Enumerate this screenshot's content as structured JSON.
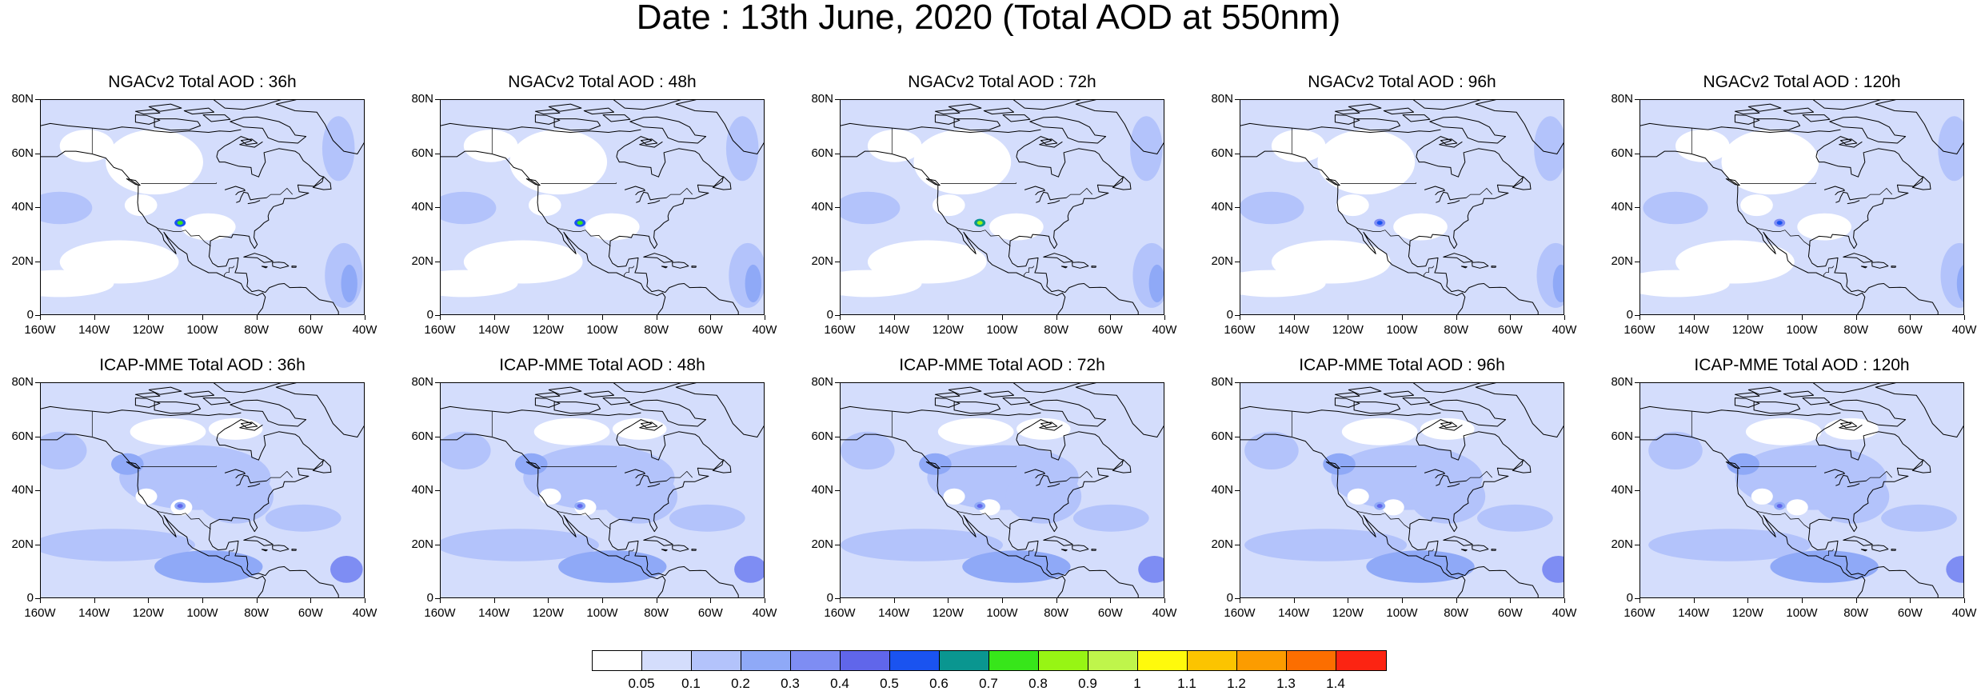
{
  "title": "Date : 13th June, 2020 (Total AOD at 550nm)",
  "rows": [
    {
      "model": "NGACv2",
      "panels": [
        {
          "label": "NGACv2 Total AOD : 36h",
          "lead": "36h",
          "dust_plume_peak": 0.7
        },
        {
          "label": "NGACv2 Total AOD : 48h",
          "lead": "48h",
          "dust_plume_peak": 0.7
        },
        {
          "label": "NGACv2 Total AOD : 72h",
          "lead": "72h",
          "dust_plume_peak": 0.8
        },
        {
          "label": "NGACv2 Total AOD : 96h",
          "lead": "96h",
          "dust_plume_peak": 0.5
        },
        {
          "label": "NGACv2 Total AOD : 120h",
          "lead": "120h",
          "dust_plume_peak": 0.5
        }
      ]
    },
    {
      "model": "ICAP-MME",
      "panels": [
        {
          "label": "ICAP-MME Total AOD : 36h",
          "lead": "36h",
          "dust_plume_peak": 0.4
        },
        {
          "label": "ICAP-MME Total AOD : 48h",
          "lead": "48h",
          "dust_plume_peak": 0.4
        },
        {
          "label": "ICAP-MME Total AOD : 72h",
          "lead": "72h",
          "dust_plume_peak": 0.4
        },
        {
          "label": "ICAP-MME Total AOD : 96h",
          "lead": "96h",
          "dust_plume_peak": 0.4
        },
        {
          "label": "ICAP-MME Total AOD : 120h",
          "lead": "120h",
          "dust_plume_peak": 0.4
        }
      ]
    }
  ],
  "axes": {
    "lat_ticks": [
      "0",
      "20N",
      "40N",
      "60N",
      "80N"
    ],
    "lat_values": [
      0,
      20,
      40,
      60,
      80
    ],
    "lon_ticks": [
      "160W",
      "140W",
      "120W",
      "100W",
      "80W",
      "60W",
      "40W"
    ],
    "lon_values": [
      -160,
      -140,
      -120,
      -100,
      -80,
      -60,
      -40
    ],
    "lat_range": [
      0,
      80
    ],
    "lon_range": [
      -160,
      -40
    ]
  },
  "colorbar": {
    "colors": [
      "#ffffff",
      "#d4ddfc",
      "#b3c3fb",
      "#8fa9f7",
      "#7e8df3",
      "#6066ea",
      "#1a53f0",
      "#0a9690",
      "#37e61a",
      "#97f514",
      "#bff54b",
      "#fffa0c",
      "#fcc400",
      "#fc9c00",
      "#fc6e00",
      "#fc2412"
    ],
    "labels": [
      "0.05",
      "0.1",
      "0.2",
      "0.3",
      "0.4",
      "0.5",
      "0.6",
      "0.7",
      "0.8",
      "0.9",
      "1",
      "1.1",
      "1.2",
      "1.3",
      "1.4"
    ]
  }
}
